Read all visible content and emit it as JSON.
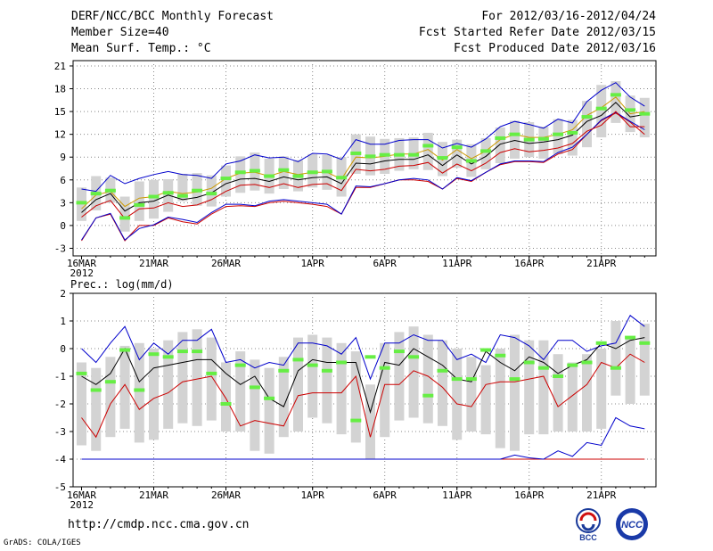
{
  "header": {
    "title": "DERF/NCC/BCC Monthly Forecast",
    "member_size": "Member Size=40",
    "variable": "Mean Surf. Temp.: °C",
    "period": "For 2012/03/16-2012/04/24",
    "started": "Fcst Started Refer Date 2012/03/15",
    "produced": "Fcst Produced Date 2012/03/16"
  },
  "footer": {
    "url": "http://cmdp.ncc.cma.gov.cn",
    "credit": "GrADS: COLA/IGES",
    "logo_bcc": "BCC",
    "logo_ncc": "NCC"
  },
  "colors": {
    "box": "#d3d3d3",
    "median": "#000000",
    "upper": "#0000cc",
    "lower": "#cc0000",
    "mean_marker": "#66ee44",
    "mean_temp_line": "#cc9900"
  },
  "chart_data": [
    {
      "type": "line",
      "name": "temperature",
      "ylabel": "",
      "ylim": [
        -4,
        22
      ],
      "yticks": [
        -3,
        0,
        3,
        6,
        9,
        12,
        15,
        18,
        21
      ],
      "xticks": [
        {
          "day": 0,
          "label": "16MAR"
        },
        {
          "day": 5,
          "label": "21MAR"
        },
        {
          "day": 10,
          "label": "26MAR"
        },
        {
          "day": 16,
          "label": "1APR"
        },
        {
          "day": 21,
          "label": "6APR"
        },
        {
          "day": 26,
          "label": "11APR"
        },
        {
          "day": 31,
          "label": "16APR"
        },
        {
          "day": 36,
          "label": "21APR"
        }
      ],
      "year_label": "2012",
      "days": 40,
      "box_low": [
        0.6,
        2.0,
        3.0,
        -0.8,
        0.6,
        0.9,
        1.8,
        3.2,
        2.6,
        2.5,
        3.8,
        4.3,
        4.6,
        4.2,
        4.8,
        4.5,
        5.0,
        4.7,
        3.8,
        6.8,
        6.6,
        6.8,
        7.2,
        7.4,
        7.3,
        6.5,
        7.6,
        6.4,
        7.4,
        8.2,
        8.8,
        9.0,
        8.8,
        9.4,
        9.2,
        10.3,
        11.6,
        13.5,
        12.3,
        11.6
      ],
      "box_high": [
        5.0,
        6.5,
        6.3,
        3.8,
        5.8,
        6.0,
        6.1,
        6.8,
        6.9,
        6.6,
        7.9,
        9.1,
        9.6,
        8.8,
        9.1,
        8.6,
        9.4,
        9.3,
        9.0,
        12.0,
        11.7,
        11.4,
        11.5,
        11.6,
        12.2,
        11.0,
        11.3,
        10.7,
        11.5,
        12.9,
        13.8,
        13.6,
        13.0,
        14.0,
        13.9,
        16.4,
        18.5,
        19.0,
        17.1,
        16.8
      ],
      "upper": [
        4.8,
        4.5,
        6.6,
        5.5,
        6.2,
        6.7,
        7.1,
        6.7,
        6.6,
        6.2,
        8.1,
        8.5,
        9.3,
        8.9,
        9.0,
        8.4,
        9.5,
        9.4,
        8.7,
        11.3,
        10.7,
        10.7,
        11.2,
        11.3,
        11.3,
        10.2,
        10.8,
        10.3,
        11.4,
        13.0,
        13.7,
        13.3,
        12.8,
        14.0,
        13.5,
        16.3,
        17.8,
        18.8,
        16.9,
        15.7
      ],
      "median": [
        1.7,
        3.4,
        4.2,
        1.9,
        3.0,
        3.2,
        4.0,
        3.4,
        3.7,
        4.3,
        5.5,
        6.1,
        6.2,
        5.8,
        6.4,
        6.0,
        6.3,
        6.4,
        5.5,
        8.2,
        8.1,
        8.5,
        8.7,
        8.7,
        9.3,
        7.9,
        9.3,
        8.1,
        9.1,
        10.7,
        11.2,
        10.8,
        11.0,
        11.3,
        11.9,
        13.7,
        14.5,
        16.2,
        14.3,
        14.6
      ],
      "lower": [
        1.1,
        2.6,
        3.3,
        0.9,
        2.2,
        2.3,
        3.0,
        2.5,
        2.7,
        3.4,
        4.5,
        5.3,
        5.4,
        5.0,
        5.5,
        5.0,
        5.4,
        5.5,
        4.6,
        7.4,
        7.2,
        7.4,
        7.8,
        7.9,
        8.3,
        6.9,
        8.1,
        7.2,
        8.2,
        9.6,
        10.1,
        9.7,
        9.9,
        10.2,
        10.8,
        12.4,
        13.2,
        15.0,
        13.0,
        13.0
      ],
      "mean": [
        2.2,
        4.0,
        4.5,
        2.5,
        3.6,
        3.8,
        4.5,
        4.2,
        4.4,
        4.9,
        6.2,
        6.9,
        7.0,
        6.5,
        7.1,
        6.7,
        7.0,
        7.0,
        6.1,
        9.0,
        8.9,
        9.1,
        9.4,
        9.4,
        10.0,
        8.6,
        10.0,
        8.8,
        9.8,
        11.3,
        12.0,
        11.6,
        11.6,
        12.0,
        12.6,
        14.5,
        15.5,
        16.9,
        14.7,
        15.0
      ],
      "ensemble_max": [
        -1.9,
        1.0,
        1.6,
        -1.9,
        -0.4,
        0.1,
        1.1,
        0.8,
        0.4,
        1.7,
        2.8,
        2.8,
        2.6,
        3.2,
        3.4,
        3.2,
        3.0,
        2.8,
        1.5,
        5.2,
        5.1,
        5.5,
        6.0,
        6.2,
        6.0,
        4.8,
        6.3,
        5.9,
        7.0,
        8.1,
        8.5,
        8.5,
        8.4,
        9.6,
        10.3,
        12.0,
        13.9,
        14.9,
        13.7,
        12.6
      ],
      "ensemble_min": [
        -2.0,
        1.0,
        1.5,
        -2.0,
        0.0,
        0.0,
        1.0,
        0.5,
        0.2,
        1.5,
        2.5,
        2.6,
        2.5,
        3.0,
        3.2,
        3.0,
        2.8,
        2.5,
        1.5,
        5.0,
        5.0,
        5.5,
        6.0,
        6.0,
        5.8,
        4.8,
        6.2,
        5.8,
        7.0,
        8.0,
        8.4,
        8.4,
        8.3,
        9.4,
        10.0,
        12.0,
        13.8,
        14.8,
        13.6,
        12.0
      ],
      "mean_marker": [
        3.0,
        4.2,
        4.6,
        1.0,
        2.7,
        3.8,
        4.3,
        3.9,
        4.6,
        4.2,
        6.2,
        7.0,
        7.2,
        6.5,
        7.3,
        6.5,
        7.0,
        7.1,
        6.3,
        9.5,
        9.1,
        9.3,
        9.3,
        9.3,
        10.5,
        8.9,
        10.3,
        8.5,
        9.8,
        11.5,
        12.0,
        11.3,
        11.4,
        12.0,
        12.2,
        14.3,
        15.4,
        17.2,
        15.2,
        14.7
      ]
    },
    {
      "type": "line",
      "name": "precipitation",
      "ylabel": "Prec.: log(mm/d)",
      "ylim": [
        -5,
        2
      ],
      "yticks": [
        -5,
        -4,
        -3,
        -2,
        -1,
        0,
        1,
        2
      ],
      "xticks": [
        {
          "day": 0,
          "label": "16MAR"
        },
        {
          "day": 5,
          "label": "21MAR"
        },
        {
          "day": 10,
          "label": "26MAR"
        },
        {
          "day": 16,
          "label": "1APR"
        },
        {
          "day": 21,
          "label": "6APR"
        },
        {
          "day": 26,
          "label": "11APR"
        },
        {
          "day": 31,
          "label": "16APR"
        },
        {
          "day": 36,
          "label": "21APR"
        }
      ],
      "year_label": "2012",
      "days": 40,
      "box_low": [
        -3.5,
        -3.7,
        -3.2,
        -2.9,
        -3.4,
        -3.3,
        -2.9,
        -2.7,
        -2.8,
        -2.6,
        -3.0,
        -3.0,
        -3.7,
        -3.8,
        -3.2,
        -3.0,
        -2.5,
        -2.7,
        -3.1,
        -3.4,
        -4.0,
        -3.2,
        -2.6,
        -2.5,
        -2.7,
        -2.8,
        -3.3,
        -3.0,
        -3.1,
        -3.6,
        -3.7,
        -3.1,
        -3.1,
        -3.0,
        -3.0,
        -3.0,
        -2.9,
        -1.7,
        -2.0,
        -1.7
      ],
      "box_high": [
        -0.5,
        -0.7,
        -0.3,
        0.1,
        0.2,
        0.0,
        0.3,
        0.6,
        0.7,
        0.4,
        -0.5,
        -0.1,
        -0.4,
        -0.7,
        -0.3,
        0.4,
        0.5,
        0.4,
        0.2,
        -0.1,
        -1.3,
        0.2,
        0.6,
        0.8,
        0.5,
        0.3,
        0.0,
        -0.3,
        -0.6,
        0.0,
        0.5,
        0.3,
        0.3,
        -0.2,
        -0.5,
        -0.2,
        0.0,
        1.0,
        0.4,
        0.9
      ],
      "upper": [
        0.0,
        -0.5,
        0.2,
        0.8,
        -0.4,
        0.2,
        -0.2,
        0.3,
        0.3,
        0.7,
        -0.5,
        -0.4,
        -0.7,
        -0.5,
        -0.6,
        0.2,
        0.2,
        0.1,
        -0.2,
        0.4,
        -1.1,
        0.2,
        0.2,
        0.5,
        0.3,
        0.3,
        -0.4,
        -0.2,
        -0.5,
        0.5,
        0.4,
        0.1,
        -0.4,
        0.3,
        0.3,
        -0.1,
        0.1,
        0.2,
        1.2,
        0.8
      ],
      "median": [
        -1.0,
        -1.3,
        -0.9,
        0.0,
        -1.2,
        -0.7,
        -0.6,
        -0.5,
        -0.4,
        -0.4,
        -0.9,
        -1.3,
        -1.0,
        -1.8,
        -2.1,
        -0.8,
        -0.4,
        -0.5,
        -0.5,
        -0.5,
        -2.3,
        -0.5,
        -0.6,
        0.0,
        -0.3,
        -0.6,
        -1.1,
        -1.2,
        -0.1,
        -0.5,
        -0.8,
        -0.3,
        -0.5,
        -0.9,
        -0.6,
        -0.4,
        0.2,
        0.0,
        0.3,
        0.4
      ],
      "lower": [
        -2.5,
        -3.2,
        -2.0,
        -1.3,
        -2.2,
        -1.8,
        -1.6,
        -1.2,
        -1.1,
        -1.0,
        -1.8,
        -2.8,
        -2.6,
        -2.7,
        -2.8,
        -1.7,
        -1.6,
        -1.6,
        -1.6,
        -1.0,
        -3.2,
        -1.3,
        -1.3,
        -0.8,
        -1.0,
        -1.4,
        -2.0,
        -2.1,
        -1.3,
        -1.2,
        -1.2,
        -1.1,
        -1.0,
        -2.1,
        -1.7,
        -1.3,
        -0.5,
        -0.7,
        -0.2,
        -0.5
      ],
      "mean": [
        -1.0,
        -1.3,
        -0.9,
        0.0,
        -1.2,
        -0.7,
        -0.6,
        -0.5,
        -0.4,
        -0.4,
        -0.9,
        -1.3,
        -1.0,
        -1.8,
        -2.1,
        -0.8,
        -0.4,
        -0.5,
        -0.5,
        -0.5,
        -2.3,
        -0.5,
        -0.6,
        0.0,
        -0.3,
        -0.6,
        -1.1,
        -1.2,
        -0.1,
        -0.5,
        -0.8,
        -0.3,
        -0.5,
        -0.9,
        -0.6,
        -0.4,
        0.2,
        0.0,
        0.3,
        0.4
      ],
      "ensemble_max": [
        -4.0,
        -4.0,
        -4.0,
        -4.0,
        -4.0,
        -4.0,
        -4.0,
        -4.0,
        -4.0,
        -4.0,
        -4.0,
        -4.0,
        -4.0,
        -4.0,
        -4.0,
        -4.0,
        -4.0,
        -4.0,
        -4.0,
        -4.0,
        -4.0,
        -4.0,
        -4.0,
        -4.0,
        -4.0,
        -4.0,
        -4.0,
        -4.0,
        -4.0,
        -4.0,
        -3.85,
        -3.95,
        -4.0,
        -3.7,
        -3.9,
        -3.4,
        -3.5,
        -2.5,
        -2.8,
        -2.9
      ],
      "ensemble_min": [
        -4.0,
        -4.0,
        -4.0,
        -4.0,
        -4.0,
        -4.0,
        -4.0,
        -4.0,
        -4.0,
        -4.0,
        -4.0,
        -4.0,
        -4.0,
        -4.0,
        -4.0,
        -4.0,
        -4.0,
        -4.0,
        -4.0,
        -4.0,
        -4.0,
        -4.0,
        -4.0,
        -4.0,
        -4.0,
        -4.0,
        -4.0,
        -4.0,
        -4.0,
        -4.0,
        -4.0,
        -4.0,
        -4.0,
        -4.0,
        -4.0,
        -4.0,
        -4.0,
        -4.0,
        -4.0,
        -4.0
      ],
      "mean_marker": [
        -0.9,
        -1.5,
        -1.2,
        -0.05,
        -1.5,
        -0.2,
        -0.3,
        -0.1,
        -0.1,
        -0.9,
        -2.0,
        -0.6,
        -1.4,
        -1.8,
        -0.8,
        -0.4,
        -0.6,
        -0.8,
        -0.5,
        -2.6,
        -0.3,
        -0.7,
        -0.1,
        -0.3,
        -1.7,
        -0.8,
        -1.1,
        -1.1,
        -0.05,
        -0.25,
        -1.1,
        -0.5,
        -0.7,
        -1.0,
        -0.6,
        -0.5,
        0.2,
        -0.7,
        0.4,
        0.2
      ]
    }
  ]
}
